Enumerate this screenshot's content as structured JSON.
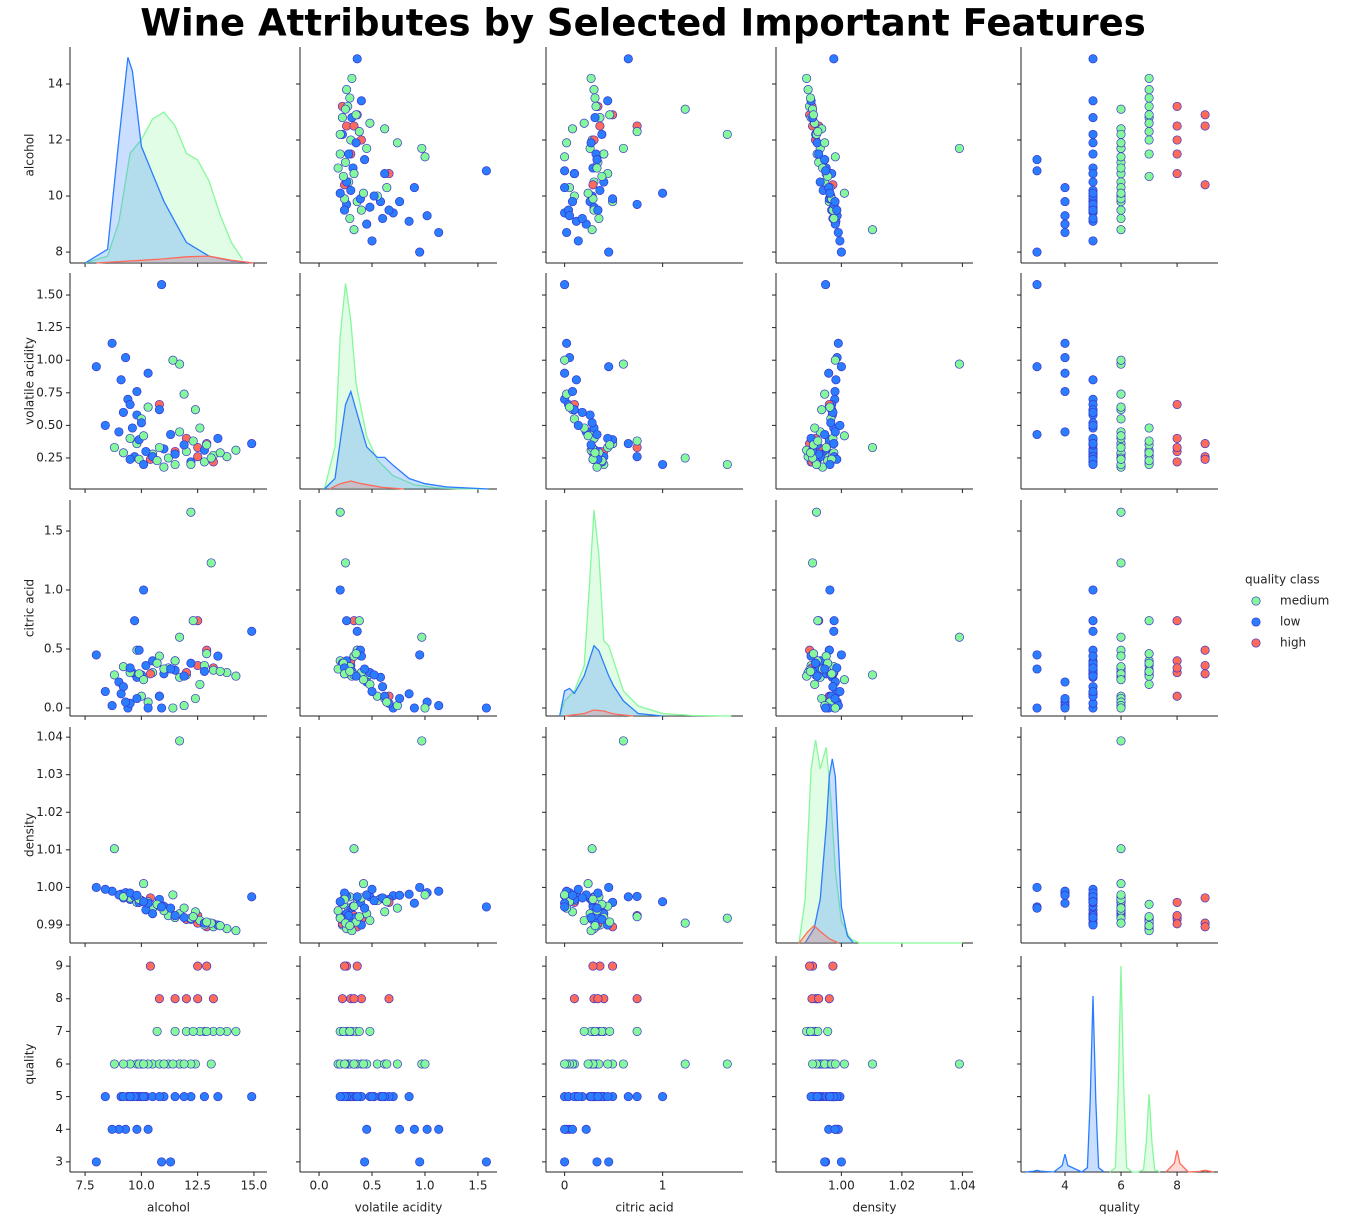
{
  "chart_data": {
    "type": "pairplot",
    "title": "Wine Attributes by Selected Important Features",
    "variables": [
      "alcohol",
      "volatile acidity",
      "citric acid",
      "density",
      "quality"
    ],
    "legend_title": "quality class",
    "legend": "right",
    "marker_edge_color": "#3a35c8",
    "axes": [
      {
        "xlim": [
          6.83,
          15.58
        ],
        "xticks": [
          7.5,
          {
            "value": 10.0,
            "label": "10.0"
          },
          12.5,
          {
            "value": 15.0,
            "label": "15.0"
          }
        ],
        "ylim": [
          7.61,
          15.32
        ],
        "yticks": [
          8,
          10,
          12,
          14
        ],
        "kde_ylim": [
          0,
          0.315
        ]
      },
      {
        "xlim": [
          -0.18,
          1.68
        ],
        "xticks": [
          {
            "value": 0.0,
            "label": "0.0"
          },
          0.5,
          {
            "value": 1.0,
            "label": "1.0"
          },
          1.5
        ],
        "ylim": [
          0.012,
          1.669
        ],
        "yticks": [
          0.25,
          {
            "value": 0.5,
            "label": "0.50"
          },
          0.75,
          {
            "value": 1.0,
            "label": "1.00"
          },
          1.25,
          {
            "value": 1.5,
            "label": "1.50"
          }
        ],
        "kde_ylim": [
          0,
          4.1
        ]
      },
      {
        "xlim": [
          -0.19,
          1.82
        ],
        "xticks": [
          0,
          1
        ],
        "ylim": [
          -0.068,
          1.763
        ],
        "yticks": [
          {
            "value": 0.0,
            "label": "0.0"
          },
          0.5,
          {
            "value": 1.0,
            "label": "1.0"
          },
          1.5
        ],
        "kde_ylim": [
          0,
          4.3
        ]
      },
      {
        "xlim": [
          0.9784,
          1.0435
        ],
        "xticks": [
          {
            "value": 1.0,
            "label": "1.00"
          },
          1.02,
          1.04
        ],
        "ylim": [
          0.9852,
          1.0427
        ],
        "yticks": [
          0.99,
          {
            "value": 1.0,
            "label": "1.00"
          },
          1.01,
          1.02,
          1.03,
          1.04
        ],
        "kde_ylim": [
          0,
          149
        ]
      },
      {
        "xlim": [
          2.43,
          9.46
        ],
        "xticks": [
          4,
          6,
          8
        ],
        "ylim": [
          2.69,
          9.31
        ],
        "yticks": [
          3,
          4,
          5,
          6,
          7,
          8,
          9
        ],
        "kde_ylim": [
          0,
          1
        ]
      }
    ],
    "series": [
      {
        "name": "medium",
        "color": "#86f89c",
        "values": [
          [
            10.5,
            11.2,
            12.0,
            12.8,
            9.8,
            11.7,
            13.2,
            10.0,
            11.5,
            12.4,
            9.5,
            10.8,
            13.8,
            14.2,
            11.0,
            12.6,
            9.2,
            10.3,
            8.8,
            11.7,
            12.2,
            13.1,
            11.9,
            10.7,
            12.9,
            9.9,
            11.4,
            12.3,
            13.5,
            10.1
          ],
          [
            0.28,
            0.25,
            0.3,
            0.22,
            0.36,
            0.45,
            0.27,
            0.55,
            0.2,
            0.62,
            0.4,
            0.33,
            0.26,
            0.31,
            0.18,
            0.48,
            0.29,
            0.64,
            0.33,
            0.97,
            0.2,
            0.25,
            0.74,
            0.23,
            0.35,
            0.24,
            1.0,
            0.38,
            0.29,
            0.42
          ],
          [
            0.3,
            0.34,
            0.28,
            0.36,
            0.49,
            0.26,
            0.32,
            0.1,
            0.4,
            0.08,
            0.3,
            0.44,
            0.3,
            0.27,
            0.33,
            0.2,
            0.35,
            0.05,
            0.28,
            0.6,
            1.66,
            1.23,
            0.02,
            0.38,
            0.46,
            0.29,
            0.0,
            0.74,
            0.31,
            0.24
          ],
          [
            0.9945,
            0.9925,
            0.9915,
            0.99,
            0.996,
            0.993,
            0.9895,
            0.9965,
            0.992,
            0.9935,
            0.9972,
            0.995,
            0.989,
            0.9885,
            0.9938,
            0.9912,
            0.9975,
            0.9962,
            1.0103,
            1.039,
            0.9918,
            0.9905,
            0.9945,
            0.9955,
            0.9908,
            0.9968,
            0.998,
            0.9922,
            0.9898,
            1.001
          ],
          [
            6,
            6,
            7,
            7,
            6,
            6,
            7,
            6,
            7,
            6,
            6,
            6,
            7,
            7,
            6,
            7,
            6,
            6,
            6,
            6,
            6,
            6,
            6,
            7,
            7,
            6,
            6,
            7,
            7,
            6
          ]
        ],
        "kde": [
          {
            "x": [
              7.5,
              8.5,
              9.0,
              9.5,
              10.0,
              10.5,
              11.0,
              11.5,
              12.0,
              12.5,
              13.0,
              13.5,
              14.0,
              14.5
            ],
            "density": [
              0,
              0.01,
              0.06,
              0.16,
              0.18,
              0.21,
              0.22,
              0.2,
              0.16,
              0.15,
              0.12,
              0.07,
              0.03,
              0.005
            ]
          },
          {
            "x": [
              0.05,
              0.15,
              0.2,
              0.25,
              0.3,
              0.35,
              0.45,
              0.55,
              0.7,
              0.9,
              1.1,
              1.3,
              1.6
            ],
            "density": [
              0,
              0.8,
              2.9,
              3.9,
              3.2,
              2.0,
              1.0,
              0.55,
              0.25,
              0.08,
              0.02,
              0.005,
              0
            ]
          },
          {
            "x": [
              -0.05,
              0,
              0.1,
              0.2,
              0.25,
              0.3,
              0.35,
              0.4,
              0.45,
              0.5,
              0.6,
              0.75,
              1.0,
              1.3,
              1.7
            ],
            "density": [
              0,
              0.3,
              0.5,
              1.0,
              2.5,
              4.1,
              3.2,
              1.5,
              1.4,
              1.1,
              0.5,
              0.2,
              0.05,
              0.01,
              0
            ]
          },
          {
            "x": [
              0.986,
              0.988,
              0.99,
              0.9915,
              0.993,
              0.995,
              0.9965,
              0.998,
              1.0,
              1.003,
              1.006,
              1.04
            ],
            "density": [
              0,
              30,
              120,
              140,
              120,
              135,
              100,
              50,
              15,
              3,
              0,
              0
            ]
          },
          {
            "x": [
              5.6,
              5.8,
              5.9,
              6.0,
              6.1,
              6.2,
              6.4,
              6.6,
              6.8,
              6.9,
              7.0,
              7.1,
              7.2,
              7.4
            ],
            "density": [
              0,
              0.02,
              0.38,
              0.954,
              0.38,
              0.02,
              0,
              0,
              0.01,
              0.14,
              0.36,
              0.14,
              0.01,
              0
            ]
          }
        ]
      },
      {
        "name": "low",
        "color": "#2a7dff",
        "values": [
          [
            9.4,
            9.5,
            9.8,
            10.2,
            9.1,
            9.6,
            10.5,
            11.0,
            9.3,
            9.9,
            10.8,
            11.5,
            12.2,
            9.0,
            8.7,
            9.2,
            10.0,
            12.8,
            13.4,
            9.7,
            10.3,
            11.9,
            8.4,
            9.5,
            10.9,
            14.9,
            9.8,
            10.1,
            8.0,
            11.3
          ],
          [
            0.7,
            0.66,
            0.58,
            0.3,
            0.85,
            0.48,
            0.26,
            0.32,
            1.02,
            0.39,
            0.62,
            0.28,
            0.22,
            0.45,
            1.13,
            0.6,
            0.52,
            0.31,
            0.4,
            0.26,
            0.9,
            0.35,
            0.5,
            0.24,
            1.58,
            0.36,
            0.76,
            0.2,
            0.95,
            0.43
          ],
          [
            0.0,
            0.04,
            0.26,
            0.36,
            0.12,
            0.3,
            0.4,
            0.29,
            0.05,
            0.49,
            0.1,
            0.32,
            0.38,
            0.22,
            0.02,
            0.18,
            0.28,
            0.31,
            0.44,
            0.74,
            0.0,
            0.27,
            0.14,
            0.34,
            0.0,
            0.65,
            0.08,
            1.0,
            0.45,
            0.33
          ],
          [
            0.9978,
            0.9968,
            0.997,
            0.994,
            0.9982,
            0.9975,
            0.993,
            0.995,
            0.9986,
            0.996,
            0.9968,
            0.9925,
            0.9915,
            0.998,
            0.999,
            0.9972,
            0.9965,
            0.9905,
            0.99,
            0.9976,
            0.9958,
            0.992,
            0.9995,
            0.9985,
            0.9948,
            0.9975,
            0.9979,
            0.9962,
            1.0,
            0.9945
          ],
          [
            5,
            5,
            5,
            5,
            5,
            5,
            5,
            5,
            4,
            5,
            5,
            5,
            5,
            4,
            4,
            5,
            5,
            5,
            5,
            5,
            4,
            5,
            5,
            5,
            3,
            5,
            4,
            5,
            3,
            3
          ]
        ],
        "kde": [
          {
            "x": [
              7.5,
              8.5,
              9.0,
              9.4,
              9.6,
              10.0,
              10.5,
              11.0,
              11.5,
              12.0,
              13.0,
              14.0,
              15.0
            ],
            "density": [
              0,
              0.02,
              0.18,
              0.3,
              0.28,
              0.17,
              0.13,
              0.09,
              0.06,
              0.03,
              0.01,
              0.003,
              0
            ]
          },
          {
            "x": [
              0.05,
              0.15,
              0.2,
              0.25,
              0.3,
              0.35,
              0.45,
              0.55,
              0.62,
              0.7,
              0.85,
              1.0,
              1.2,
              1.6
            ],
            "density": [
              0,
              0.2,
              0.9,
              1.6,
              1.85,
              1.5,
              0.8,
              0.6,
              0.6,
              0.45,
              0.2,
              0.1,
              0.04,
              0
            ]
          },
          {
            "x": [
              -0.05,
              0,
              0.05,
              0.1,
              0.2,
              0.3,
              0.35,
              0.45,
              0.5,
              0.6,
              0.75,
              1.0
            ],
            "density": [
              0,
              0.5,
              0.55,
              0.45,
              0.8,
              1.4,
              1.3,
              0.8,
              0.6,
              0.3,
              0.05,
              0
            ]
          },
          {
            "x": [
              0.988,
              0.991,
              0.993,
              0.995,
              0.996,
              0.997,
              0.998,
              0.999,
              1.0,
              1.002,
              1.004
            ],
            "density": [
              0,
              10,
              30,
              80,
              115,
              127,
              115,
              70,
              25,
              5,
              0
            ]
          },
          {
            "x": [
              2.6,
              2.9,
              3.0,
              3.1,
              3.6,
              3.9,
              4.0,
              4.1,
              4.6,
              4.8,
              4.9,
              5.0,
              5.1,
              5.2,
              5.4
            ],
            "density": [
              0,
              0.004,
              0.008,
              0.004,
              0,
              0.03,
              0.083,
              0.03,
              0,
              0.02,
              0.33,
              0.815,
              0.33,
              0.02,
              0
            ]
          }
        ]
      },
      {
        "name": "high",
        "color": "#ff6b5a",
        "values": [
          [
            12.5,
            12.9,
            10.4,
            11.5,
            12.0,
            13.2,
            10.8,
            12.5
          ],
          [
            0.26,
            0.36,
            0.24,
            0.3,
            0.4,
            0.22,
            0.66,
            0.33
          ],
          [
            0.36,
            0.49,
            0.29,
            0.4,
            0.3,
            0.34,
            0.1,
            0.74
          ],
          [
            0.9905,
            0.9895,
            0.9972,
            0.992,
            0.9915,
            0.9903,
            0.996,
            0.9925
          ],
          [
            9,
            9,
            9,
            8,
            8,
            8,
            8,
            8
          ]
        ],
        "kde": [
          {
            "x": [
              8,
              9,
              10,
              11,
              12,
              13,
              14,
              15
            ],
            "density": [
              0,
              0.002,
              0.004,
              0.006,
              0.009,
              0.01,
              0.004,
              0
            ]
          },
          {
            "x": [
              0.1,
              0.2,
              0.3,
              0.4,
              0.6,
              0.8
            ],
            "density": [
              0,
              0.1,
              0.15,
              0.1,
              0.03,
              0
            ]
          },
          {
            "x": [
              0,
              0.2,
              0.3,
              0.4,
              0.5,
              0.7
            ],
            "density": [
              0,
              0.05,
              0.12,
              0.1,
              0.04,
              0
            ]
          },
          {
            "x": [
              0.986,
              0.989,
              0.991,
              0.993,
              0.996,
              0.999
            ],
            "density": [
              0,
              8,
              12,
              8,
              3,
              0
            ]
          },
          {
            "x": [
              7.6,
              7.9,
              8.0,
              8.1,
              8.4,
              8.8,
              9.0,
              9.2,
              9.3
            ],
            "density": [
              0,
              0.04,
              0.1,
              0.04,
              0,
              0.003,
              0.008,
              0.003,
              0
            ]
          }
        ]
      }
    ]
  }
}
